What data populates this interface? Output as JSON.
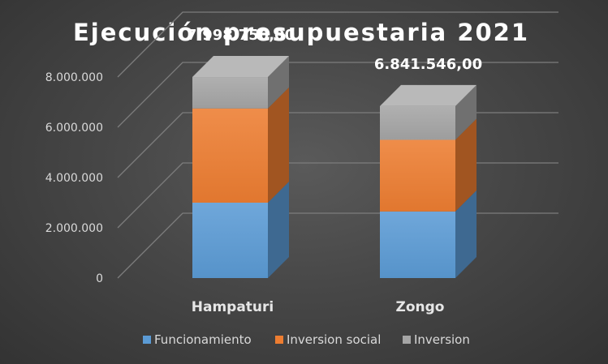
{
  "chart_data": {
    "type": "bar",
    "stacked": true,
    "style": "3d",
    "title": "Ejecución presupuestaria 2021",
    "categories": [
      "Hampaturi",
      "Zongo"
    ],
    "series": [
      {
        "name": "Funcionamiento",
        "color": "#5b9bd5",
        "values": [
          3000000,
          2650000
        ]
      },
      {
        "name": "Inversion social",
        "color": "#ed7d31",
        "values": [
          3750000,
          2850000
        ]
      },
      {
        "name": "Inversion",
        "color": "#a5a5a5",
        "values": [
          1248750,
          1341546
        ]
      }
    ],
    "totals": [
      "7.998.750,00",
      "6.841.546,00"
    ],
    "y_ticks": [
      "0",
      "2.000.000",
      "4.000.000",
      "6.000.000",
      "8.000.000"
    ],
    "ylim": [
      0,
      8000000
    ],
    "grid": true,
    "legend_position": "bottom"
  }
}
